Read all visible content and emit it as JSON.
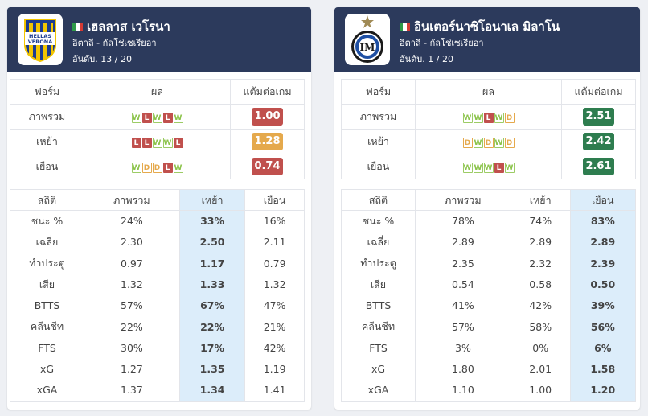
{
  "cards": [
    {
      "team_name": "เฮลลาส เวโรนา",
      "league": "อิตาลี - กัลโช่เซเรียอา",
      "rank": "อันดับ. 13 / 20",
      "logo_text": [
        "HELLAS",
        "VERONA"
      ],
      "form_headers": [
        "ฟอร์ม",
        "ผล",
        "แต้มต่อเกม"
      ],
      "form_rows": [
        {
          "label": "ภาพรวม",
          "results": [
            "W",
            "L",
            "W",
            "L",
            "W"
          ],
          "ppg": "1.00",
          "ppg_color": "#c0504d"
        },
        {
          "label": "เหย้า",
          "results": [
            "L",
            "L",
            "W",
            "W",
            "L"
          ],
          "ppg": "1.28",
          "ppg_color": "#e5a94c"
        },
        {
          "label": "เยือน",
          "results": [
            "W",
            "D",
            "D",
            "L",
            "W"
          ],
          "ppg": "0.74",
          "ppg_color": "#c0504d"
        }
      ],
      "stat_headers": [
        "สถิติ",
        "ภาพรวม",
        "เหย้า",
        "เยือน"
      ],
      "highlight_col": 2,
      "stat_rows": [
        {
          "label": "ชนะ %",
          "values": [
            "24%",
            "33%",
            "16%"
          ]
        },
        {
          "label": "เฉลี่ย",
          "values": [
            "2.30",
            "2.50",
            "2.11"
          ]
        },
        {
          "label": "ทำประตู",
          "values": [
            "0.97",
            "1.17",
            "0.79"
          ]
        },
        {
          "label": "เสีย",
          "values": [
            "1.32",
            "1.33",
            "1.32"
          ]
        },
        {
          "label": "BTTS",
          "values": [
            "57%",
            "67%",
            "47%"
          ]
        },
        {
          "label": "คลีนชีท",
          "values": [
            "22%",
            "22%",
            "21%"
          ]
        },
        {
          "label": "FTS",
          "values": [
            "30%",
            "17%",
            "42%"
          ]
        },
        {
          "label": "xG",
          "values": [
            "1.27",
            "1.35",
            "1.19"
          ]
        },
        {
          "label": "xGA",
          "values": [
            "1.37",
            "1.34",
            "1.41"
          ]
        }
      ]
    },
    {
      "team_name": "อินเตอร์นาซิโอนาเล มิลาโน",
      "league": "อิตาลี - กัลโช่เซเรียอา",
      "rank": "อันดับ. 1 / 20",
      "logo_text": [
        "FC",
        "IM"
      ],
      "form_headers": [
        "ฟอร์ม",
        "ผล",
        "แต้มต่อเกม"
      ],
      "form_rows": [
        {
          "label": "ภาพรวม",
          "results": [
            "W",
            "W",
            "L",
            "W",
            "D"
          ],
          "ppg": "2.51",
          "ppg_color": "#2e7d4f"
        },
        {
          "label": "เหย้า",
          "results": [
            "D",
            "W",
            "D",
            "W",
            "D"
          ],
          "ppg": "2.42",
          "ppg_color": "#2e7d4f"
        },
        {
          "label": "เยือน",
          "results": [
            "W",
            "W",
            "W",
            "L",
            "W"
          ],
          "ppg": "2.61",
          "ppg_color": "#2e7d4f"
        }
      ],
      "stat_headers": [
        "สถิติ",
        "ภาพรวม",
        "เหย้า",
        "เยือน"
      ],
      "highlight_col": 3,
      "stat_rows": [
        {
          "label": "ชนะ %",
          "values": [
            "78%",
            "74%",
            "83%"
          ]
        },
        {
          "label": "เฉลี่ย",
          "values": [
            "2.89",
            "2.89",
            "2.89"
          ]
        },
        {
          "label": "ทำประตู",
          "values": [
            "2.35",
            "2.32",
            "2.39"
          ]
        },
        {
          "label": "เสีย",
          "values": [
            "0.54",
            "0.58",
            "0.50"
          ]
        },
        {
          "label": "BTTS",
          "values": [
            "41%",
            "42%",
            "39%"
          ]
        },
        {
          "label": "คลีนชีท",
          "values": [
            "57%",
            "58%",
            "56%"
          ]
        },
        {
          "label": "FTS",
          "values": [
            "3%",
            "0%",
            "6%"
          ]
        },
        {
          "label": "xG",
          "values": [
            "1.80",
            "2.01",
            "1.58"
          ]
        },
        {
          "label": "xGA",
          "values": [
            "1.10",
            "1.00",
            "1.20"
          ]
        }
      ]
    }
  ],
  "colors": {
    "header_bg": "#2c3a5c",
    "highlight_bg": "#dcedfa",
    "win": "#8bc34a",
    "loss": "#c0504d",
    "draw": "#e5a94c",
    "ppg_good": "#2e7d4f"
  }
}
